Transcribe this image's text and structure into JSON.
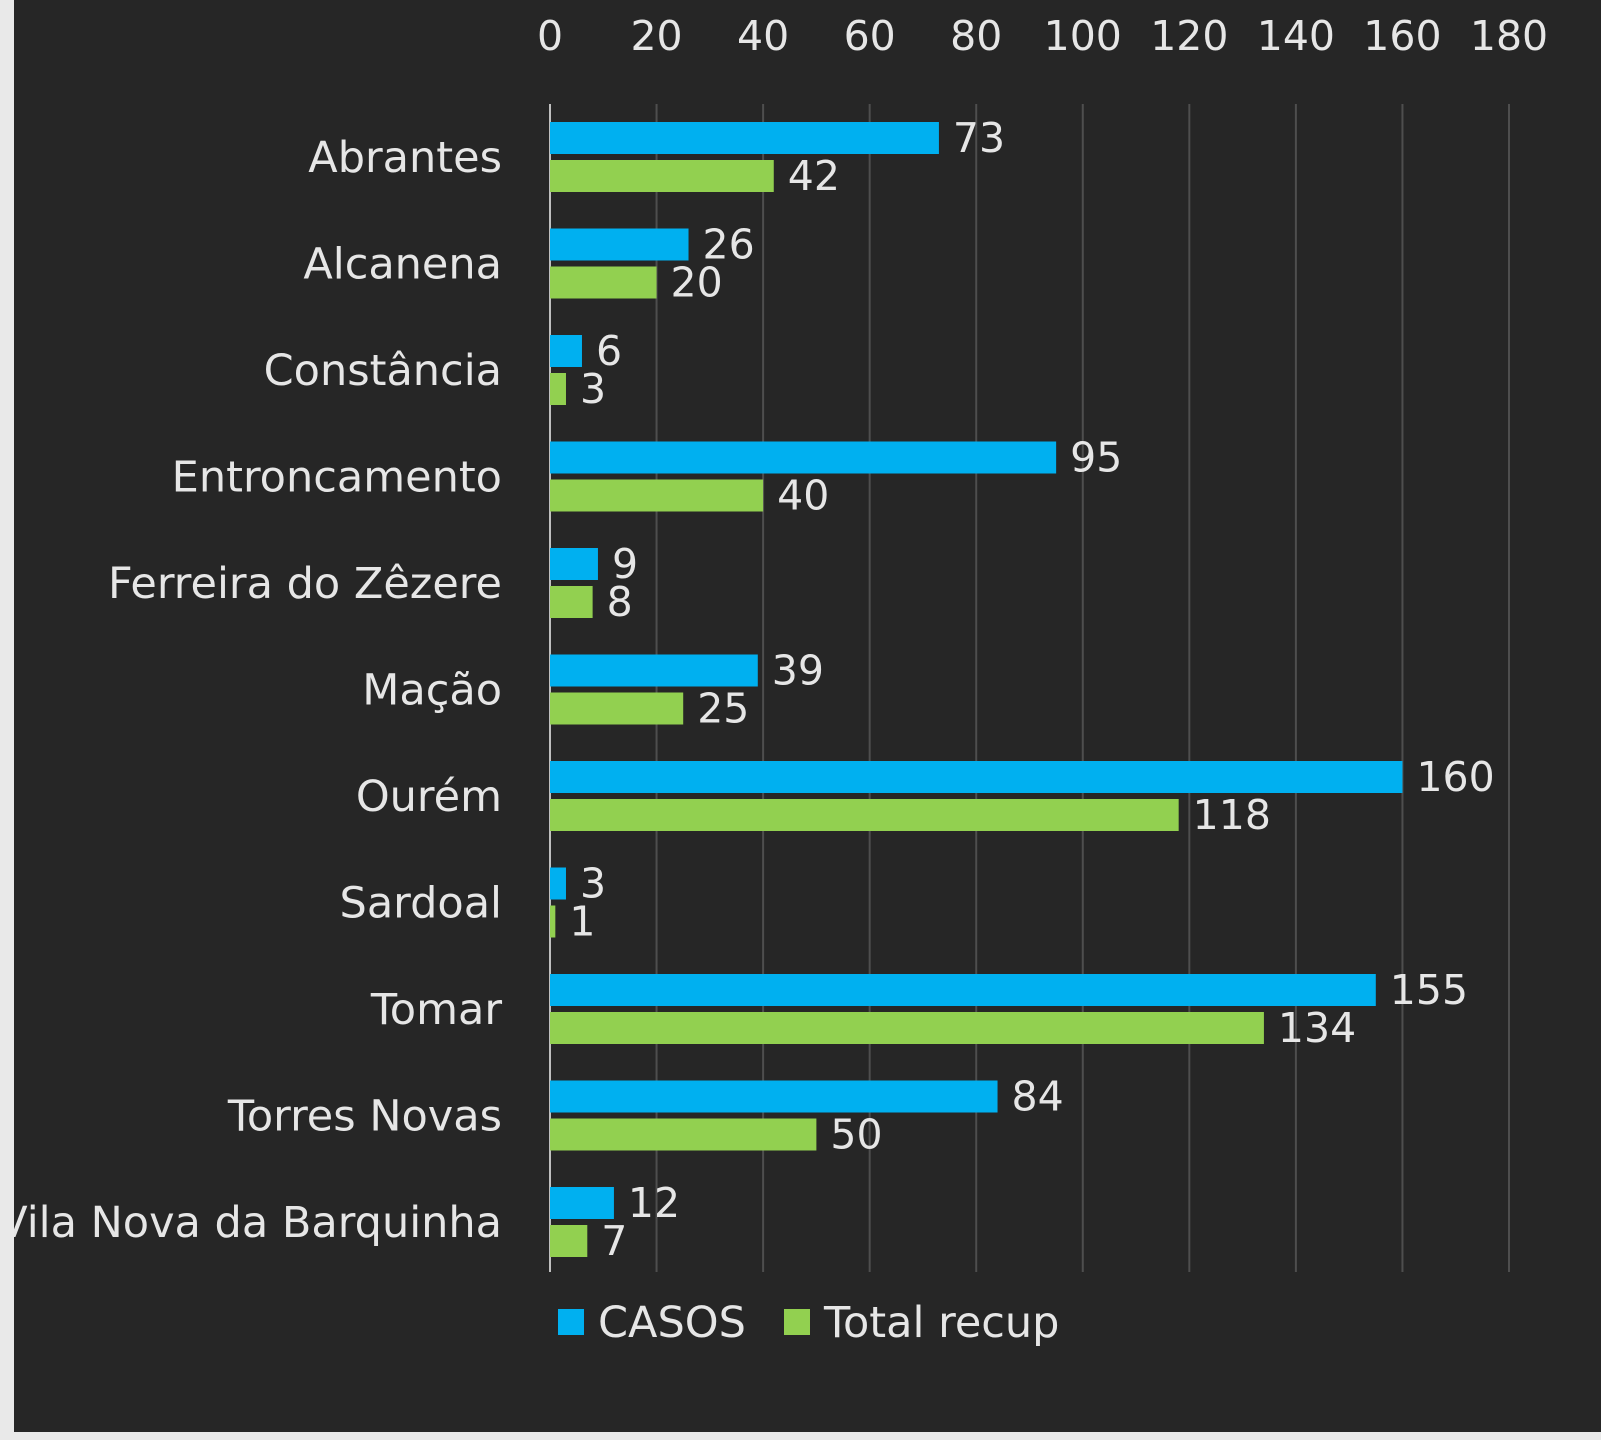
{
  "chart_data": {
    "type": "bar",
    "orientation": "horizontal",
    "categories": [
      "Abrantes",
      "Alcanena",
      "Constância",
      "Entroncamento",
      "Ferreira do Zêzere",
      "Mação",
      "Ourém",
      "Sardoal",
      "Tomar",
      "Torres Novas",
      "Vila Nova da Barquinha"
    ],
    "series": [
      {
        "name": "CASOS",
        "color": "#00b0f0",
        "values": [
          73,
          26,
          6,
          95,
          9,
          39,
          160,
          3,
          155,
          84,
          12
        ]
      },
      {
        "name": "Total recup",
        "color": "#92d050",
        "values": [
          42,
          20,
          3,
          40,
          8,
          25,
          118,
          1,
          134,
          50,
          7
        ]
      }
    ],
    "xlim": [
      0,
      180
    ],
    "xticks": [
      "0",
      "20",
      "40",
      "60",
      "80",
      "100",
      "120",
      "140",
      "160",
      "180"
    ],
    "x_axis_position": "top",
    "grid": true,
    "legend_position": "bottom",
    "data_labels": true,
    "background": "#262626"
  }
}
